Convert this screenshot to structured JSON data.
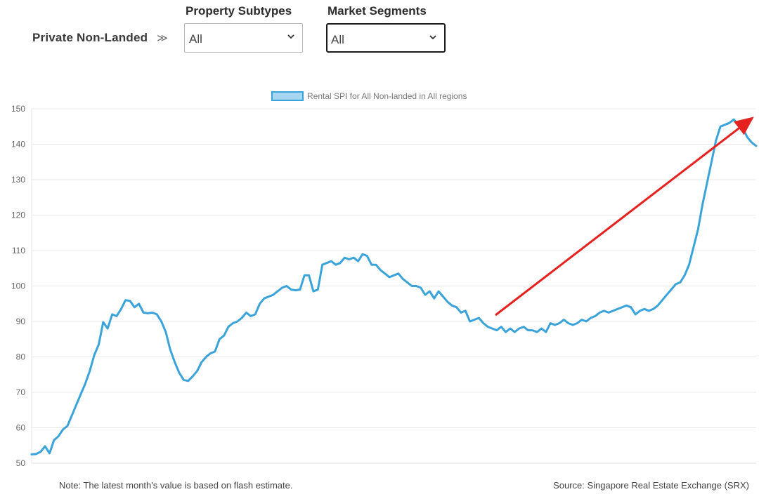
{
  "filters": {
    "breadcrumb": "Private Non-Landed",
    "breadcrumb_chevron": "≫",
    "property_subtypes": {
      "label": "Property Subtypes",
      "value": "All"
    },
    "market_segments": {
      "label": "Market Segments",
      "value": "All"
    }
  },
  "chart_data": {
    "type": "line",
    "legend_placement": "top-center",
    "grid": true,
    "ylim": [
      50,
      150
    ],
    "yticks": [
      "150",
      "140",
      "130",
      "120",
      "110",
      "100",
      "90",
      "80",
      "70",
      "60",
      "50"
    ],
    "series": [
      {
        "name": "Rental SPI for All Non-landed in All regions",
        "color": "#3aa3d9",
        "fill_color": "#a7d6f0",
        "values": [
          52.5,
          52.6,
          53.2,
          54.8,
          52.8,
          56.5,
          57.6,
          59.5,
          60.5,
          63.5,
          66.5,
          69.5,
          72.5,
          76.0,
          80.5,
          83.5,
          89.8,
          88.0,
          92.0,
          91.5,
          93.5,
          96.0,
          95.8,
          94.0,
          95.0,
          92.5,
          92.3,
          92.5,
          92.0,
          90.0,
          87.0,
          82.0,
          78.5,
          75.5,
          73.5,
          73.2,
          74.5,
          76.0,
          78.5,
          80.0,
          81.0,
          81.5,
          85.0,
          86.0,
          88.5,
          89.5,
          90.0,
          91.0,
          92.5,
          91.5,
          92.0,
          95.0,
          96.5,
          97.0,
          97.5,
          98.5,
          99.5,
          100.0,
          99.0,
          98.8,
          99.0,
          103.0,
          103.0,
          98.5,
          99.0,
          106.0,
          106.5,
          107.0,
          106.0,
          106.5,
          108.0,
          107.5,
          108.0,
          107.0,
          109.0,
          108.5,
          106.0,
          106.0,
          104.5,
          103.5,
          102.5,
          103.0,
          103.5,
          102.0,
          101.0,
          100.0,
          100.0,
          99.5,
          97.5,
          98.5,
          96.5,
          98.5,
          97.0,
          95.5,
          94.5,
          94.0,
          92.5,
          93.0,
          90.0,
          90.5,
          91.0,
          89.5,
          88.5,
          88.0,
          87.5,
          88.5,
          87.0,
          88.0,
          87.0,
          88.0,
          88.5,
          87.5,
          87.5,
          87.0,
          88.0,
          87.0,
          89.5,
          89.0,
          89.5,
          90.5,
          89.5,
          89.0,
          89.5,
          90.5,
          90.0,
          91.0,
          91.5,
          92.5,
          93.0,
          92.5,
          93.0,
          93.5,
          94.0,
          94.5,
          94.0,
          92.0,
          93.0,
          93.5,
          93.0,
          93.5,
          94.5,
          96.0,
          97.5,
          99.0,
          100.5,
          101.0,
          103.0,
          106.0,
          111.0,
          116.0,
          123.0,
          129.0,
          135.0,
          141.0,
          145.0,
          145.5,
          146.0,
          147.0,
          145.5,
          144.5,
          142.0,
          140.5,
          139.5
        ]
      }
    ],
    "annotation": {
      "type": "arrow",
      "color": "#e5221f"
    }
  },
  "footer": {
    "note": "Note: The latest month's value is based on flash estimate.",
    "source": "Source: Singapore Real Estate Exchange (SRX)"
  }
}
